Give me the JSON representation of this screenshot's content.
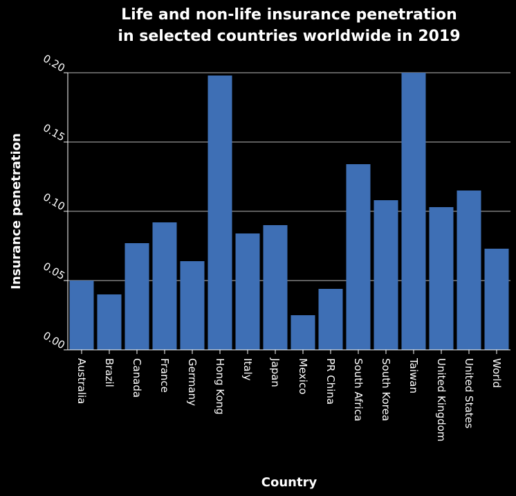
{
  "chart_data": {
    "type": "bar",
    "title": [
      "Life and non-life insurance penetration",
      "in selected countries worldwide in 2019"
    ],
    "xlabel": "Country",
    "ylabel": "Insurance penetration",
    "ylim": [
      0,
      0.2
    ],
    "yticks": [
      "0.00",
      "0.05",
      "0.10",
      "0.15",
      "0.20"
    ],
    "grid": true,
    "bar_color": "#3e6fb5",
    "background": "#000000",
    "categories": [
      "Australia",
      "Brazil",
      "Canada",
      "France",
      "Germany",
      "Hong Kong",
      "Italy",
      "Japan",
      "Mexico",
      "PR China",
      "South Africa",
      "South Korea",
      "Taiwan",
      "United Kingdom",
      "United States",
      "World"
    ],
    "values": [
      0.05,
      0.04,
      0.077,
      0.092,
      0.064,
      0.198,
      0.084,
      0.09,
      0.025,
      0.044,
      0.134,
      0.108,
      0.2,
      0.103,
      0.115,
      0.073
    ]
  }
}
